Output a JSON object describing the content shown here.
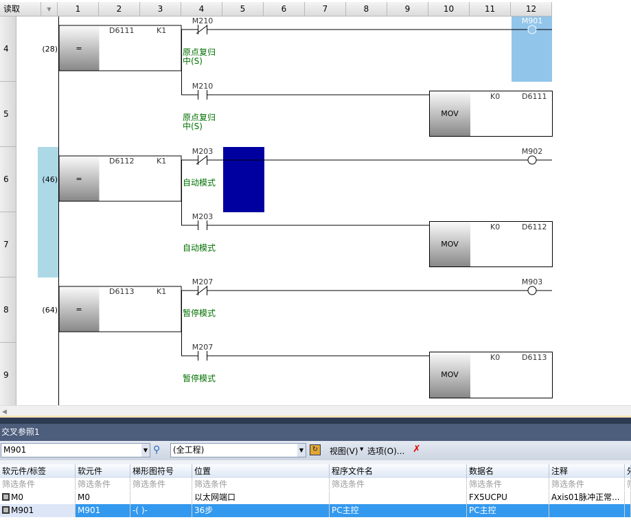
{
  "ladder": {
    "read_mode": "读取",
    "columns": [
      "1",
      "2",
      "3",
      "4",
      "5",
      "6",
      "7",
      "8",
      "9",
      "10",
      "11",
      "12"
    ],
    "rows": [
      "4",
      "5",
      "6",
      "7",
      "8",
      "9"
    ],
    "rungs": [
      {
        "step": "(28)",
        "op": "=",
        "s1": "D6111",
        "s2": "K1",
        "contact": "M210",
        "comment": "原点复归",
        "comment2": "中(S)",
        "coil": "M901",
        "mov_src": "K0",
        "mov_dst": "D6111",
        "mov": "MOV"
      },
      {
        "step": "(46)",
        "op": "=",
        "s1": "D6112",
        "s2": "K1",
        "contact": "M203",
        "comment": "自动模式",
        "comment2": "",
        "coil": "M902",
        "mov_src": "K0",
        "mov_dst": "D6112",
        "mov": "MOV"
      },
      {
        "step": "(64)",
        "op": "=",
        "s1": "D6113",
        "s2": "K1",
        "contact": "M207",
        "comment": "暂停模式",
        "comment2": "",
        "coil": "M903",
        "mov_src": "K0",
        "mov_dst": "D6113",
        "mov": "MOV"
      }
    ],
    "colors": {
      "coil_highlight": "#92c5ea",
      "row_highlight": "#add8e6",
      "cursor": "#0000a0",
      "comment": "#007000"
    }
  },
  "xref": {
    "title": "交叉参照1",
    "device_value": "M901",
    "scope_value": "(全工程)",
    "view_menu": "视图(V)",
    "options_menu": "选项(O)...",
    "headers": [
      "软元件/标签",
      "软元件",
      "梯形图符号",
      "位置",
      "程序文件名",
      "数据名",
      "注释",
      "外"
    ],
    "filter": "筛选条件",
    "rows": [
      [
        "M0",
        "M0",
        "",
        "以太网端口",
        "",
        "FX5UCPU",
        "Axis01脉冲正常..."
      ],
      [
        "M901",
        "M901",
        "-( )-",
        "36步",
        "PC主控",
        "PC主控",
        ""
      ]
    ]
  }
}
